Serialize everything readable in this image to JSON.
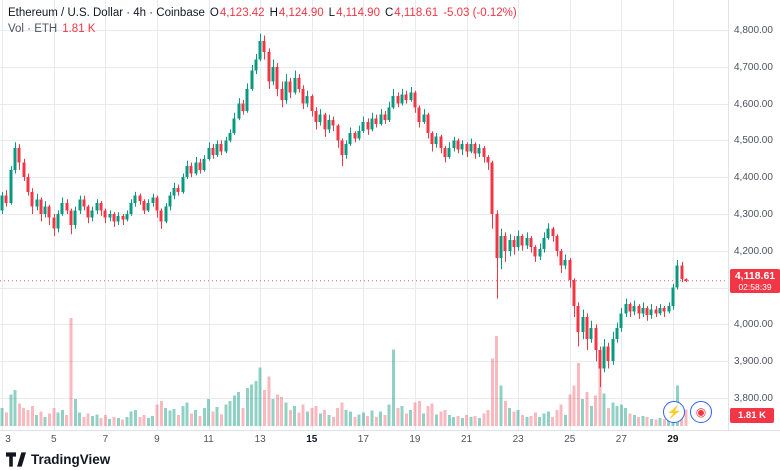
{
  "legend": {
    "title": "Ethereum / U.S. Dollar · 4h · Coinbase",
    "o_label": "O",
    "o_value": "4,123.42",
    "h_label": "H",
    "h_value": "4,124.90",
    "l_label": "L",
    "l_value": "4,114.90",
    "c_label": "C",
    "c_value": "4,118.61",
    "change": "-5.03 (-0.12%)",
    "vol_label": "Vol · ETH",
    "vol_value": "1.81 K"
  },
  "price_tag": {
    "value": "4,118.61",
    "countdown": "02:58:39",
    "price": 4118.61
  },
  "vol_badge": {
    "value": "1.81 K"
  },
  "axes": {
    "price_ticks": [
      {
        "label": "4,800.00",
        "price": 4800
      },
      {
        "label": "4,700.00",
        "price": 4700
      },
      {
        "label": "4,600.00",
        "price": 4600
      },
      {
        "label": "4,500.00",
        "price": 4500
      },
      {
        "label": "4,400.00",
        "price": 4400
      },
      {
        "label": "4,300.00",
        "price": 4300
      },
      {
        "label": "4,200.00",
        "price": 4200
      },
      {
        "label": "4,100.00",
        "price": 4100
      },
      {
        "label": "4,000.00",
        "price": 4000
      },
      {
        "label": "3,900.00",
        "price": 3900
      },
      {
        "label": "3,800.00",
        "price": 3800
      }
    ],
    "time_ticks": [
      {
        "label": "3",
        "day": 3
      },
      {
        "label": "5",
        "day": 5
      },
      {
        "label": "7",
        "day": 7
      },
      {
        "label": "9",
        "day": 9
      },
      {
        "label": "11",
        "day": 11
      },
      {
        "label": "13",
        "day": 13
      },
      {
        "label": "15",
        "day": 15,
        "bold": true
      },
      {
        "label": "17",
        "day": 17
      },
      {
        "label": "19",
        "day": 19
      },
      {
        "label": "21",
        "day": 21
      },
      {
        "label": "23",
        "day": 23
      },
      {
        "label": "25",
        "day": 25
      },
      {
        "label": "27",
        "day": 27
      },
      {
        "label": "29",
        "day": 29,
        "bold": true
      }
    ]
  },
  "footer": {
    "logo_text": "TradingView"
  },
  "reactions": [
    {
      "name": "lightning-icon",
      "glyph": "⚡",
      "color": "#7E57C2"
    },
    {
      "name": "target-icon",
      "glyph": "◉",
      "color": "#F23645"
    }
  ],
  "chart_data": {
    "type": "candlestick",
    "symbol": "Ethereum / U.S. Dollar",
    "exchange": "Coinbase",
    "interval": "4h",
    "last_price": 4118.61,
    "last_change": "-5.03 (-0.12%)",
    "last_volume": "1.81 K",
    "y_axis": {
      "min": 3800,
      "max": 4800,
      "step": 100,
      "ylim": [
        3750,
        4870
      ]
    },
    "x_axis": {
      "unit": "day of month",
      "start_day": 3,
      "end_day": 29,
      "candles_per_day": 6,
      "ticks": [
        3,
        5,
        7,
        9,
        11,
        13,
        15,
        17,
        19,
        21,
        23,
        25,
        27,
        29
      ]
    },
    "legend_position": "top-left",
    "grid": true,
    "colors": {
      "up": "#089981",
      "down": "#F23645",
      "vol_up": "rgba(8,153,129,0.45)",
      "vol_down": "rgba(242,54,69,0.35)",
      "grid": "#E7EAF0",
      "axis_text": "#50535E",
      "tag_bg": "#F23645",
      "background": "#FFFFFF"
    },
    "columns": [
      "open",
      "high",
      "low",
      "close",
      "volume_K"
    ],
    "candles": [
      [
        4310,
        4360,
        4300,
        4350,
        2.0
      ],
      [
        4350,
        4365,
        4320,
        4330,
        1.5
      ],
      [
        4330,
        4430,
        4325,
        4420,
        3.5
      ],
      [
        4420,
        4495,
        4410,
        4480,
        4.0
      ],
      [
        4480,
        4490,
        4420,
        4440,
        2.5
      ],
      [
        4440,
        4450,
        4390,
        4400,
        2.0
      ],
      [
        4400,
        4410,
        4350,
        4360,
        1.8
      ],
      [
        4360,
        4370,
        4300,
        4320,
        2.2
      ],
      [
        4320,
        4355,
        4310,
        4340,
        1.2
      ],
      [
        4340,
        4345,
        4280,
        4300,
        1.6
      ],
      [
        4300,
        4335,
        4290,
        4320,
        1.0
      ],
      [
        4320,
        4325,
        4270,
        4290,
        1.4
      ],
      [
        4290,
        4300,
        4240,
        4260,
        2.0
      ],
      [
        4260,
        4310,
        4250,
        4300,
        1.5
      ],
      [
        4300,
        4345,
        4295,
        4330,
        1.8
      ],
      [
        4330,
        4340,
        4300,
        4310,
        1.2
      ],
      [
        4310,
        4315,
        4245,
        4270,
        12.0
      ],
      [
        4270,
        4320,
        4260,
        4310,
        3.0
      ],
      [
        4310,
        4350,
        4300,
        4340,
        1.5
      ],
      [
        4340,
        4350,
        4310,
        4320,
        1.0
      ],
      [
        4320,
        4325,
        4275,
        4290,
        1.4
      ],
      [
        4290,
        4320,
        4280,
        4310,
        1.1
      ],
      [
        4310,
        4340,
        4300,
        4330,
        1.3
      ],
      [
        4330,
        4335,
        4295,
        4310,
        0.9
      ],
      [
        4310,
        4315,
        4275,
        4290,
        1.2
      ],
      [
        4290,
        4310,
        4280,
        4300,
        0.8
      ],
      [
        4300,
        4305,
        4265,
        4280,
        1.0
      ],
      [
        4280,
        4305,
        4270,
        4295,
        0.9
      ],
      [
        4295,
        4300,
        4270,
        4285,
        0.7
      ],
      [
        4285,
        4310,
        4280,
        4300,
        1.0
      ],
      [
        4300,
        4340,
        4295,
        4330,
        1.6
      ],
      [
        4330,
        4360,
        4320,
        4350,
        1.8
      ],
      [
        4350,
        4355,
        4325,
        4335,
        1.0
      ],
      [
        4335,
        4340,
        4300,
        4310,
        1.2
      ],
      [
        4310,
        4340,
        4305,
        4330,
        0.9
      ],
      [
        4330,
        4355,
        4320,
        4345,
        1.1
      ],
      [
        4345,
        4350,
        4290,
        4310,
        2.4
      ],
      [
        4310,
        4315,
        4260,
        4280,
        2.8
      ],
      [
        4280,
        4330,
        4275,
        4320,
        2.0
      ],
      [
        4320,
        4360,
        4310,
        4350,
        1.7
      ],
      [
        4350,
        4385,
        4340,
        4370,
        1.9
      ],
      [
        4370,
        4380,
        4350,
        4360,
        1.2
      ],
      [
        4360,
        4410,
        4355,
        4400,
        2.2
      ],
      [
        4400,
        4445,
        4395,
        4430,
        2.6
      ],
      [
        4430,
        4440,
        4400,
        4410,
        1.4
      ],
      [
        4410,
        4455,
        4405,
        4440,
        1.8
      ],
      [
        4440,
        4450,
        4410,
        4420,
        1.1
      ],
      [
        4420,
        4460,
        4415,
        4450,
        2.0
      ],
      [
        4450,
        4495,
        4445,
        4480,
        3.0
      ],
      [
        4480,
        4490,
        4450,
        4460,
        1.6
      ],
      [
        4460,
        4500,
        4455,
        4490,
        2.1
      ],
      [
        4490,
        4500,
        4460,
        4470,
        1.3
      ],
      [
        4470,
        4510,
        4465,
        4500,
        2.4
      ],
      [
        4500,
        4530,
        4495,
        4520,
        2.8
      ],
      [
        4520,
        4575,
        4515,
        4560,
        3.4
      ],
      [
        4560,
        4615,
        4555,
        4600,
        3.8
      ],
      [
        4600,
        4610,
        4570,
        4580,
        2.0
      ],
      [
        4580,
        4655,
        4575,
        4640,
        4.2
      ],
      [
        4640,
        4705,
        4635,
        4690,
        4.6
      ],
      [
        4690,
        4735,
        4680,
        4720,
        5.0
      ],
      [
        4720,
        4790,
        4715,
        4770,
        6.5
      ],
      [
        4770,
        4785,
        4720,
        4740,
        4.0
      ],
      [
        4740,
        4750,
        4640,
        4660,
        5.5
      ],
      [
        4660,
        4720,
        4650,
        4700,
        3.0
      ],
      [
        4700,
        4710,
        4620,
        4640,
        3.5
      ],
      [
        4640,
        4660,
        4590,
        4610,
        3.2
      ],
      [
        4610,
        4680,
        4600,
        4660,
        2.6
      ],
      [
        4660,
        4670,
        4615,
        4630,
        1.8
      ],
      [
        4630,
        4690,
        4625,
        4670,
        2.2
      ],
      [
        4670,
        4680,
        4630,
        4640,
        1.5
      ],
      [
        4640,
        4650,
        4585,
        4600,
        2.4
      ],
      [
        4600,
        4635,
        4590,
        4620,
        1.6
      ],
      [
        4620,
        4625,
        4565,
        4580,
        2.0
      ],
      [
        4580,
        4590,
        4530,
        4550,
        2.2
      ],
      [
        4550,
        4585,
        4540,
        4570,
        1.4
      ],
      [
        4570,
        4575,
        4510,
        4530,
        1.8
      ],
      [
        4530,
        4570,
        4520,
        4555,
        1.2
      ],
      [
        4555,
        4565,
        4525,
        4540,
        1.0
      ],
      [
        4540,
        4545,
        4480,
        4500,
        2.0
      ],
      [
        4500,
        4505,
        4430,
        4460,
        2.6
      ],
      [
        4460,
        4500,
        4450,
        4490,
        1.8
      ],
      [
        4490,
        4535,
        4485,
        4520,
        1.6
      ],
      [
        4520,
        4525,
        4495,
        4505,
        1.0
      ],
      [
        4505,
        4540,
        4500,
        4525,
        1.3
      ],
      [
        4525,
        4565,
        4520,
        4550,
        1.5
      ],
      [
        4550,
        4560,
        4515,
        4530,
        1.1
      ],
      [
        4530,
        4575,
        4525,
        4560,
        1.7
      ],
      [
        4560,
        4570,
        4535,
        4545,
        1.0
      ],
      [
        4545,
        4585,
        4540,
        4570,
        1.6
      ],
      [
        4570,
        4580,
        4545,
        4555,
        1.2
      ],
      [
        4555,
        4605,
        4550,
        4590,
        2.4
      ],
      [
        4590,
        4640,
        4585,
        4620,
        8.5
      ],
      [
        4620,
        4630,
        4590,
        4600,
        2.0
      ],
      [
        4600,
        4640,
        4595,
        4625,
        2.2
      ],
      [
        4625,
        4635,
        4600,
        4610,
        1.4
      ],
      [
        4610,
        4645,
        4605,
        4630,
        1.8
      ],
      [
        4630,
        4635,
        4575,
        4590,
        2.6
      ],
      [
        4590,
        4595,
        4535,
        4550,
        2.8
      ],
      [
        4550,
        4585,
        4545,
        4570,
        1.4
      ],
      [
        4570,
        4575,
        4505,
        4520,
        2.2
      ],
      [
        4520,
        4525,
        4470,
        4490,
        2.5
      ],
      [
        4490,
        4520,
        4480,
        4510,
        1.3
      ],
      [
        4510,
        4515,
        4465,
        4480,
        1.6
      ],
      [
        4480,
        4485,
        4440,
        4455,
        1.8
      ],
      [
        4455,
        4495,
        4450,
        4480,
        1.2
      ],
      [
        4480,
        4510,
        4470,
        4500,
        1.0
      ],
      [
        4500,
        4505,
        4465,
        4475,
        1.1
      ],
      [
        4475,
        4500,
        4460,
        4490,
        0.9
      ],
      [
        4490,
        4495,
        4455,
        4470,
        1.2
      ],
      [
        4470,
        4505,
        4465,
        4490,
        1.0
      ],
      [
        4490,
        4495,
        4450,
        4465,
        1.1
      ],
      [
        4465,
        4490,
        4455,
        4480,
        0.9
      ],
      [
        4480,
        4485,
        4440,
        4455,
        1.4
      ],
      [
        4455,
        4460,
        4420,
        4440,
        1.8
      ],
      [
        4440,
        4445,
        4260,
        4300,
        7.5
      ],
      [
        4300,
        4310,
        4070,
        4180,
        10.0
      ],
      [
        4180,
        4260,
        4150,
        4240,
        4.5
      ],
      [
        4240,
        4250,
        4170,
        4200,
        2.8
      ],
      [
        4200,
        4245,
        4185,
        4230,
        2.0
      ],
      [
        4230,
        4240,
        4190,
        4210,
        1.6
      ],
      [
        4210,
        4255,
        4200,
        4240,
        1.8
      ],
      [
        4240,
        4245,
        4200,
        4215,
        1.2
      ],
      [
        4215,
        4250,
        4205,
        4235,
        1.0
      ],
      [
        4235,
        4240,
        4195,
        4210,
        1.1
      ],
      [
        4210,
        4215,
        4170,
        4185,
        1.5
      ],
      [
        4185,
        4220,
        4175,
        4205,
        1.0
      ],
      [
        4205,
        4250,
        4195,
        4235,
        1.4
      ],
      [
        4235,
        4275,
        4230,
        4260,
        1.6
      ],
      [
        4260,
        4265,
        4225,
        4240,
        1.0
      ],
      [
        4240,
        4245,
        4185,
        4200,
        1.8
      ],
      [
        4200,
        4205,
        4140,
        4160,
        2.4
      ],
      [
        4160,
        4190,
        4150,
        4175,
        1.2
      ],
      [
        4175,
        4180,
        4100,
        4120,
        3.5
      ],
      [
        4120,
        4125,
        4020,
        4050,
        4.5
      ],
      [
        4050,
        4060,
        3940,
        3980,
        7.0
      ],
      [
        3980,
        4040,
        3960,
        4020,
        3.0
      ],
      [
        4020,
        4030,
        3930,
        3960,
        3.8
      ],
      [
        3960,
        4010,
        3950,
        3990,
        2.2
      ],
      [
        3990,
        4000,
        3900,
        3930,
        3.4
      ],
      [
        3930,
        3940,
        3830,
        3880,
        6.5
      ],
      [
        3880,
        3960,
        3870,
        3940,
        3.6
      ],
      [
        3940,
        3950,
        3880,
        3900,
        2.0
      ],
      [
        3900,
        3980,
        3890,
        3960,
        2.6
      ],
      [
        3960,
        4005,
        3950,
        3990,
        2.2
      ],
      [
        3990,
        4045,
        3980,
        4030,
        2.4
      ],
      [
        4030,
        4070,
        4020,
        4055,
        2.0
      ],
      [
        4055,
        4060,
        4020,
        4035,
        1.4
      ],
      [
        4035,
        4065,
        4025,
        4050,
        1.2
      ],
      [
        4050,
        4055,
        4015,
        4030,
        1.0
      ],
      [
        4030,
        4060,
        4020,
        4045,
        1.1
      ],
      [
        4045,
        4050,
        4010,
        4025,
        1.0
      ],
      [
        4025,
        4055,
        4015,
        4040,
        0.8
      ],
      [
        4040,
        4050,
        4020,
        4030,
        0.7
      ],
      [
        4030,
        4055,
        4025,
        4045,
        0.9
      ],
      [
        4045,
        4050,
        4020,
        4035,
        0.8
      ],
      [
        4035,
        4060,
        4030,
        4050,
        1.0
      ],
      [
        4050,
        4110,
        4040,
        4100,
        2.5
      ],
      [
        4100,
        4175,
        4095,
        4160,
        4.5
      ],
      [
        4160,
        4170,
        4115,
        4123.42,
        2.2
      ],
      [
        4123.42,
        4124.9,
        4114.9,
        4118.61,
        1.81
      ]
    ]
  }
}
